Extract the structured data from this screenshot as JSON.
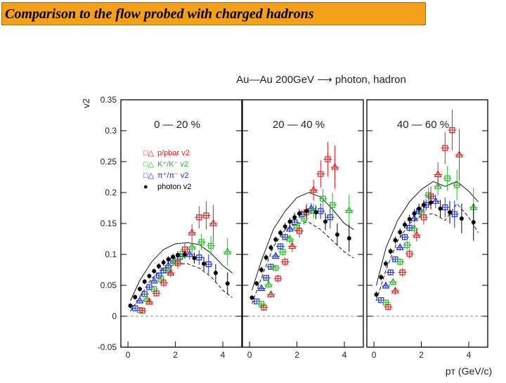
{
  "slide": {
    "title": "Comparison to the flow probed with  charged hadrons",
    "title_bg": "#f5a01a"
  },
  "chart_data": {
    "type": "scatter",
    "title": "Au—Au 200GeV  ⟶  photon, hadron",
    "xlabel": "pᴛ (GeV/c)",
    "ylabel": "v2",
    "xlim": [
      -0.3,
      4.8
    ],
    "ylim": [
      -0.05,
      0.35
    ],
    "xticks": [
      0,
      2,
      4
    ],
    "xtick_labels": [
      "0",
      "2",
      "4"
    ],
    "yticks": [
      -0.05,
      0,
      0.05,
      0.1,
      0.15,
      0.2,
      0.25,
      0.3,
      0.35
    ],
    "ytick_labels": [
      "-0.05",
      "0",
      "0.05",
      "0.1",
      "0.15",
      "0.2",
      "0.25",
      "0.3",
      "0.35"
    ],
    "zero_line": true,
    "legend": [
      {
        "name": "p/pbar v2",
        "marker": "□△",
        "color": "#d62020"
      },
      {
        "name": "K⁺/K⁻ v2",
        "marker": "□△",
        "color": "#22b822"
      },
      {
        "name": "π⁺/π⁻ v2",
        "marker": "□△",
        "color": "#1a2fd6"
      },
      {
        "name": "photon v2",
        "marker": "●",
        "color": "#000000"
      }
    ],
    "panels": [
      {
        "label": "0 — 20 %",
        "photon": {
          "x": [
            0.1,
            0.3,
            0.5,
            0.7,
            0.9,
            1.1,
            1.3,
            1.5,
            1.7,
            1.9,
            2.1,
            2.4,
            2.8,
            3.2,
            3.7,
            4.2
          ],
          "y": [
            0.017,
            0.031,
            0.044,
            0.056,
            0.065,
            0.073,
            0.081,
            0.087,
            0.092,
            0.096,
            0.099,
            0.1,
            0.094,
            0.085,
            0.07,
            0.053
          ],
          "err": [
            0.004,
            0.004,
            0.004,
            0.004,
            0.004,
            0.004,
            0.005,
            0.005,
            0.005,
            0.005,
            0.006,
            0.007,
            0.009,
            0.011,
            0.014,
            0.018
          ]
        },
        "band_upper": [
          [
            0.1,
            0.025
          ],
          [
            0.5,
            0.058
          ],
          [
            1.0,
            0.088
          ],
          [
            1.5,
            0.108
          ],
          [
            2.0,
            0.117
          ],
          [
            2.5,
            0.119
          ],
          [
            3.0,
            0.116
          ],
          [
            3.5,
            0.102
          ],
          [
            4.0,
            0.082
          ],
          [
            4.4,
            0.07
          ]
        ],
        "band_lower": [
          [
            0.1,
            0.008
          ],
          [
            0.5,
            0.031
          ],
          [
            1.0,
            0.061
          ],
          [
            1.5,
            0.077
          ],
          [
            2.0,
            0.084
          ],
          [
            2.5,
            0.085
          ],
          [
            3.0,
            0.078
          ],
          [
            3.5,
            0.064
          ],
          [
            4.0,
            0.042
          ],
          [
            4.4,
            0.03
          ]
        ],
        "pion": {
          "x": [
            0.3,
            0.5,
            0.7,
            0.9,
            1.1,
            1.3,
            1.5,
            1.7,
            1.9,
            2.2,
            2.6,
            3.0,
            3.4
          ],
          "y": [
            0.013,
            0.025,
            0.036,
            0.047,
            0.057,
            0.066,
            0.074,
            0.082,
            0.09,
            0.096,
            0.1,
            0.095,
            0.084
          ],
          "err": [
            0.003,
            0.003,
            0.003,
            0.003,
            0.003,
            0.004,
            0.004,
            0.004,
            0.005,
            0.006,
            0.008,
            0.012,
            0.016
          ]
        },
        "kaon": {
          "x": [
            0.5,
            0.8,
            1.1,
            1.4,
            1.7,
            2.0,
            2.3,
            2.7,
            3.1,
            3.5,
            4.2
          ],
          "y": [
            0.01,
            0.028,
            0.044,
            0.06,
            0.075,
            0.088,
            0.101,
            0.112,
            0.12,
            0.114,
            0.104
          ],
          "err": [
            0.004,
            0.004,
            0.005,
            0.005,
            0.006,
            0.007,
            0.008,
            0.01,
            0.013,
            0.016,
            0.022
          ]
        },
        "proton": {
          "x": [
            0.6,
            0.9,
            1.2,
            1.5,
            1.8,
            2.1,
            2.4,
            2.7,
            3.0,
            3.3,
            3.6
          ],
          "y": [
            0.009,
            0.023,
            0.037,
            0.054,
            0.07,
            0.086,
            0.108,
            0.135,
            0.16,
            0.163,
            0.15
          ],
          "err": [
            0.004,
            0.004,
            0.005,
            0.006,
            0.007,
            0.009,
            0.011,
            0.014,
            0.018,
            0.023,
            0.03
          ]
        }
      },
      {
        "label": "20 — 40 %",
        "photon": {
          "x": [
            0.1,
            0.3,
            0.5,
            0.7,
            0.9,
            1.1,
            1.3,
            1.5,
            1.7,
            1.9,
            2.1,
            2.4,
            2.8,
            3.2,
            3.7,
            4.2
          ],
          "y": [
            0.03,
            0.053,
            0.075,
            0.095,
            0.111,
            0.124,
            0.135,
            0.145,
            0.153,
            0.16,
            0.166,
            0.17,
            0.168,
            0.153,
            0.132,
            0.126
          ],
          "err": [
            0.004,
            0.004,
            0.005,
            0.005,
            0.005,
            0.005,
            0.005,
            0.006,
            0.006,
            0.007,
            0.007,
            0.009,
            0.011,
            0.014,
            0.018,
            0.022
          ]
        },
        "band_upper": [
          [
            0.1,
            0.042
          ],
          [
            0.5,
            0.09
          ],
          [
            1.0,
            0.14
          ],
          [
            1.5,
            0.17
          ],
          [
            2.0,
            0.192
          ],
          [
            2.5,
            0.2
          ],
          [
            3.0,
            0.193
          ],
          [
            3.5,
            0.173
          ],
          [
            4.0,
            0.15
          ],
          [
            4.4,
            0.14
          ]
        ],
        "band_lower": [
          [
            0.1,
            0.02
          ],
          [
            0.5,
            0.062
          ],
          [
            1.0,
            0.112
          ],
          [
            1.5,
            0.14
          ],
          [
            2.0,
            0.15
          ],
          [
            2.5,
            0.152
          ],
          [
            3.0,
            0.14
          ],
          [
            3.5,
            0.122
          ],
          [
            4.0,
            0.104
          ],
          [
            4.4,
            0.094
          ]
        ],
        "pion": {
          "x": [
            0.3,
            0.5,
            0.7,
            0.9,
            1.1,
            1.3,
            1.5,
            1.7,
            1.9,
            2.2,
            2.6,
            3.0,
            3.4
          ],
          "y": [
            0.024,
            0.045,
            0.062,
            0.08,
            0.097,
            0.113,
            0.128,
            0.141,
            0.152,
            0.165,
            0.174,
            0.17,
            0.16
          ],
          "err": [
            0.003,
            0.003,
            0.003,
            0.004,
            0.004,
            0.004,
            0.005,
            0.005,
            0.006,
            0.007,
            0.009,
            0.013,
            0.018
          ]
        },
        "kaon": {
          "x": [
            0.5,
            0.8,
            1.1,
            1.4,
            1.7,
            2.0,
            2.3,
            2.7,
            3.1,
            3.5,
            4.2
          ],
          "y": [
            0.02,
            0.051,
            0.078,
            0.104,
            0.125,
            0.143,
            0.158,
            0.17,
            0.19,
            0.18,
            0.171
          ],
          "err": [
            0.004,
            0.005,
            0.005,
            0.006,
            0.007,
            0.008,
            0.01,
            0.012,
            0.016,
            0.02,
            0.026
          ]
        },
        "proton": {
          "x": [
            0.6,
            0.9,
            1.2,
            1.5,
            1.8,
            2.1,
            2.4,
            2.7,
            3.0,
            3.3,
            3.6
          ],
          "y": [
            0.014,
            0.035,
            0.061,
            0.088,
            0.113,
            0.138,
            0.168,
            0.204,
            0.23,
            0.254,
            0.241
          ],
          "err": [
            0.005,
            0.005,
            0.006,
            0.007,
            0.009,
            0.011,
            0.014,
            0.017,
            0.022,
            0.028,
            0.035
          ]
        }
      },
      {
        "label": "40 — 60 %",
        "photon": {
          "x": [
            0.1,
            0.3,
            0.5,
            0.7,
            0.9,
            1.1,
            1.3,
            1.5,
            1.7,
            1.9,
            2.1,
            2.4,
            2.8,
            3.2,
            3.7,
            4.2
          ],
          "y": [
            0.035,
            0.063,
            0.085,
            0.105,
            0.123,
            0.136,
            0.148,
            0.157,
            0.166,
            0.174,
            0.18,
            0.184,
            0.174,
            0.168,
            0.158,
            0.152
          ],
          "err": [
            0.005,
            0.005,
            0.005,
            0.005,
            0.006,
            0.006,
            0.006,
            0.007,
            0.007,
            0.008,
            0.008,
            0.011,
            0.014,
            0.018,
            0.024,
            0.03
          ]
        },
        "band_upper": [
          [
            0.1,
            0.05
          ],
          [
            0.5,
            0.11
          ],
          [
            1.0,
            0.155
          ],
          [
            1.5,
            0.185
          ],
          [
            2.0,
            0.205
          ],
          [
            2.5,
            0.218
          ],
          [
            3.0,
            0.21
          ],
          [
            3.5,
            0.218
          ],
          [
            4.0,
            0.202
          ],
          [
            4.4,
            0.185
          ]
        ],
        "band_lower": [
          [
            0.1,
            0.025
          ],
          [
            0.5,
            0.074
          ],
          [
            1.0,
            0.122
          ],
          [
            1.5,
            0.15
          ],
          [
            2.0,
            0.163
          ],
          [
            2.5,
            0.166
          ],
          [
            3.0,
            0.155
          ],
          [
            3.5,
            0.182
          ],
          [
            4.0,
            0.16
          ],
          [
            4.4,
            0.135
          ]
        ],
        "pion": {
          "x": [
            0.3,
            0.5,
            0.7,
            0.9,
            1.1,
            1.3,
            1.5,
            1.7,
            1.9,
            2.2,
            2.6,
            3.0,
            3.4
          ],
          "y": [
            0.026,
            0.049,
            0.071,
            0.092,
            0.111,
            0.128,
            0.143,
            0.158,
            0.17,
            0.18,
            0.186,
            0.176,
            0.165
          ],
          "err": [
            0.004,
            0.004,
            0.004,
            0.004,
            0.005,
            0.005,
            0.006,
            0.006,
            0.007,
            0.009,
            0.011,
            0.016,
            0.022
          ]
        },
        "kaon": {
          "x": [
            0.5,
            0.8,
            1.1,
            1.4,
            1.7,
            2.0,
            2.3,
            2.7,
            3.1,
            3.5,
            4.2
          ],
          "y": [
            0.022,
            0.055,
            0.088,
            0.115,
            0.142,
            0.168,
            0.196,
            0.21,
            0.223,
            0.212,
            0.176
          ],
          "err": [
            0.005,
            0.005,
            0.006,
            0.007,
            0.008,
            0.01,
            0.012,
            0.015,
            0.02,
            0.025,
            0.032
          ]
        },
        "proton": {
          "x": [
            0.6,
            0.9,
            1.2,
            1.5,
            1.8,
            2.1,
            2.4,
            2.7,
            3.0,
            3.3,
            3.6
          ],
          "y": [
            0.015,
            0.041,
            0.071,
            0.101,
            0.131,
            0.16,
            0.194,
            0.229,
            0.272,
            0.301,
            0.261
          ],
          "err": [
            0.005,
            0.006,
            0.007,
            0.008,
            0.01,
            0.012,
            0.016,
            0.02,
            0.026,
            0.033,
            0.042
          ]
        }
      }
    ]
  }
}
